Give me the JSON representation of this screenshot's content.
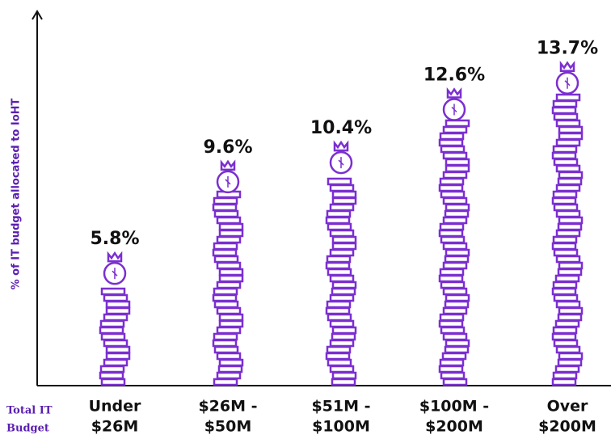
{
  "chart_data": {
    "type": "pictograph",
    "y_label": "% of IT budget allocated to IoHT",
    "x_label": [
      "Total IT",
      "Budget"
    ],
    "categories": [
      [
        "Under",
        "$26M"
      ],
      [
        "$26M -",
        "$50M"
      ],
      [
        "$51M -",
        "$100M"
      ],
      [
        "$100M -",
        "$200M"
      ],
      [
        "Over",
        "$200M"
      ]
    ],
    "values": [
      5.8,
      9.6,
      10.4,
      12.6,
      13.7
    ],
    "value_labels": [
      "5.8%",
      "9.6%",
      "10.4%",
      "12.6%",
      "13.7%"
    ],
    "color": "#7b2fd0",
    "ylim": [
      0,
      15
    ]
  }
}
